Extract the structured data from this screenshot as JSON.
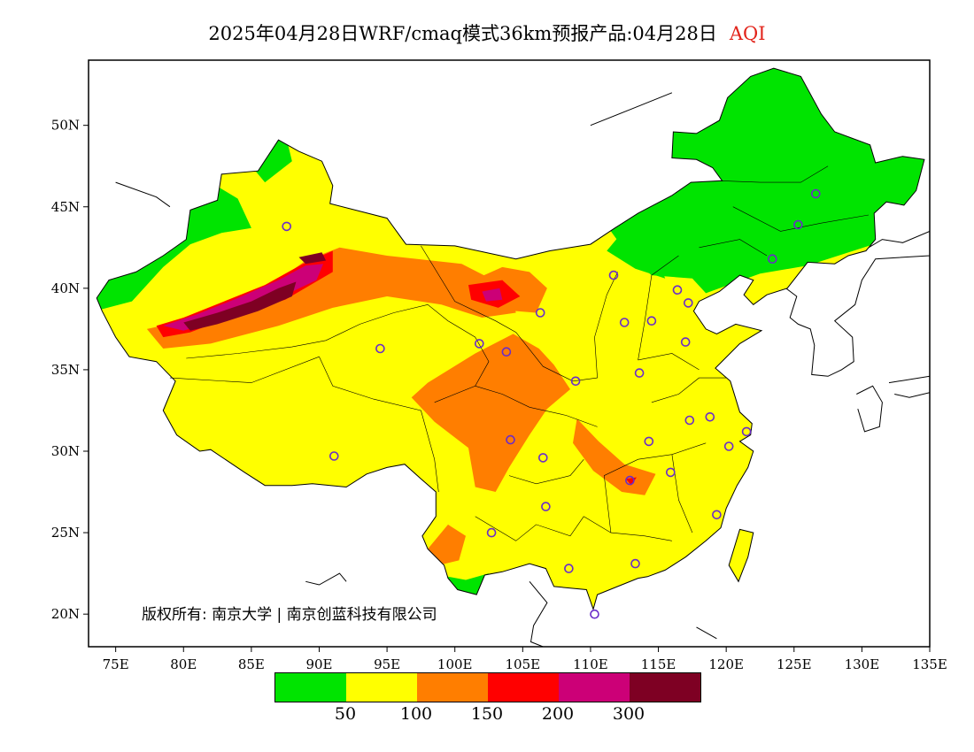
{
  "title": {
    "main": "2025年04月28日WRF/cmaq模式36km预报产品:04月28日",
    "variable": "AQI"
  },
  "axes": {
    "lon_labels": [
      "75E",
      "80E",
      "85E",
      "90E",
      "95E",
      "100E",
      "105E",
      "110E",
      "115E",
      "120E",
      "125E",
      "130E",
      "135E"
    ],
    "lat_labels": [
      "50N",
      "45N",
      "40N",
      "35N",
      "30N",
      "25N",
      "20N"
    ]
  },
  "copyright": "版权所有: 南京大学 | 南京创蓝科技有限公司",
  "legend": {
    "colors": [
      "#00e400",
      "#ffff00",
      "#ff7e00",
      "#ff0000",
      "#cc0077",
      "#7e0023"
    ],
    "labels": [
      "50",
      "100",
      "150",
      "200",
      "300"
    ]
  },
  "colors": {
    "good": "#00e400",
    "moderate": "#ffff00",
    "sensitive": "#ff7e00",
    "unhealthy": "#ff0000",
    "very_unhealthy": "#cc0077",
    "hazardous": "#7e0023",
    "station_marker": "#6a2cc9"
  },
  "map": {
    "lon_range": [
      73,
      135
    ],
    "lat_range": [
      18,
      54
    ],
    "stations": [
      [
        87.6,
        43.8
      ],
      [
        91.1,
        29.7
      ],
      [
        94.5,
        36.3
      ],
      [
        101.8,
        36.6
      ],
      [
        103.8,
        36.1
      ],
      [
        106.3,
        38.5
      ],
      [
        111.7,
        40.8
      ],
      [
        116.4,
        39.9
      ],
      [
        117.2,
        39.1
      ],
      [
        112.5,
        37.9
      ],
      [
        114.5,
        38.0
      ],
      [
        117.0,
        36.7
      ],
      [
        113.6,
        34.8
      ],
      [
        108.9,
        34.3
      ],
      [
        104.1,
        30.7
      ],
      [
        106.5,
        29.6
      ],
      [
        102.7,
        25.0
      ],
      [
        106.7,
        26.6
      ],
      [
        108.4,
        22.8
      ],
      [
        113.3,
        23.1
      ],
      [
        110.3,
        20.0
      ],
      [
        112.9,
        28.2
      ],
      [
        115.9,
        28.7
      ],
      [
        114.3,
        30.6
      ],
      [
        117.3,
        31.9
      ],
      [
        118.8,
        32.1
      ],
      [
        121.5,
        31.2
      ],
      [
        120.2,
        30.3
      ],
      [
        119.3,
        26.1
      ],
      [
        123.4,
        41.8
      ],
      [
        125.3,
        43.9
      ],
      [
        126.6,
        45.8
      ]
    ]
  }
}
